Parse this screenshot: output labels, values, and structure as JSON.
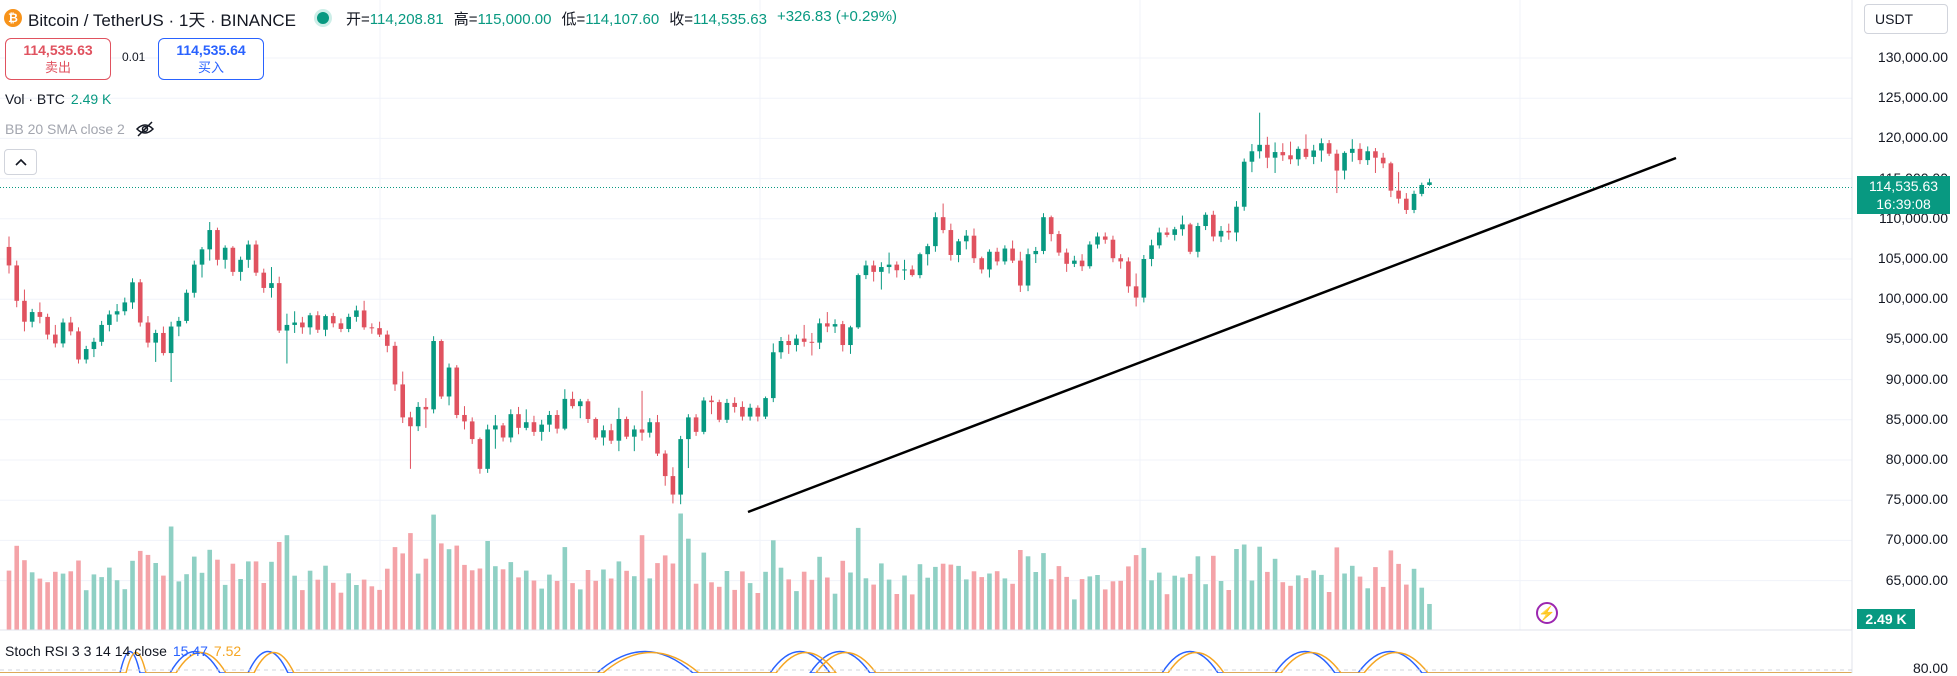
{
  "header": {
    "coin_symbol": "₿",
    "title": "Bitcoin / TetherUS · 1天 · BINANCE",
    "ohlc": [
      {
        "key": "开=",
        "value": "114,208.81"
      },
      {
        "key": "高=",
        "value": "115,000.00"
      },
      {
        "key": "低=",
        "value": "114,107.60"
      },
      {
        "key": "收=",
        "value": "114,535.63"
      },
      {
        "key": "",
        "value": "+326.83 (+0.29%)"
      }
    ]
  },
  "trade": {
    "sell_price": "114,535.63",
    "sell_label": "卖出",
    "spread": "0.01",
    "buy_price": "114,535.64",
    "buy_label": "买入"
  },
  "volume_legend": {
    "label": "Vol · BTC",
    "value": "2.49 K"
  },
  "bb_legend": {
    "label": "BB 20 SMA close 2"
  },
  "currency_selector": {
    "value": "USDT"
  },
  "price_axis": [
    "130,000.00",
    "125,000.00",
    "120,000.00",
    "115,000.00",
    "110,000.00",
    "105,000.00",
    "100,000.00",
    "95,000.00",
    "90,000.00",
    "85,000.00",
    "80,000.00",
    "75,000.00",
    "70,000.00",
    "65,000.00"
  ],
  "last_price_tag": {
    "price": "114,535.63",
    "countdown": "16:39:08"
  },
  "volume_tag": "2.49 K",
  "stoch": {
    "label": "Stoch RSI 3 3 14 14 close",
    "k": "15.47",
    "d": "7.52",
    "axis_label": "80.00"
  },
  "colors": {
    "up": "#089981",
    "down": "#e0525f",
    "vol_up": "#8fd0c4",
    "vol_down": "#f4a3a8",
    "stoch_k": "#2962ff",
    "stoch_d": "#f5a623"
  },
  "icons": {
    "hidden": "eye-off-icon",
    "collapse": "chevron-up-icon",
    "flash": "lightning-icon"
  },
  "chart_data": {
    "type": "candlestick",
    "symbol": "Bitcoin / TetherUS",
    "interval": "1天",
    "exchange": "BINANCE",
    "y_range": [
      63000,
      133000
    ],
    "last_price": 114535.63,
    "candles": [
      [
        106500,
        107800,
        103200,
        104200
      ],
      [
        104200,
        104800,
        99000,
        99800
      ],
      [
        99800,
        101200,
        96000,
        97200
      ],
      [
        97200,
        98800,
        96500,
        98400
      ],
      [
        98400,
        99600,
        97000,
        97800
      ],
      [
        97800,
        98200,
        95000,
        95600
      ],
      [
        95600,
        96800,
        94000,
        94500
      ],
      [
        94500,
        97600,
        94000,
        97100
      ],
      [
        97100,
        97800,
        95500,
        96000
      ],
      [
        96000,
        96500,
        92000,
        92500
      ],
      [
        92500,
        94200,
        92000,
        93800
      ],
      [
        93800,
        95200,
        92800,
        94700
      ],
      [
        94700,
        97300,
        94200,
        96800
      ],
      [
        96800,
        98600,
        96000,
        98100
      ],
      [
        98100,
        99400,
        97200,
        98500
      ],
      [
        98500,
        100200,
        98000,
        99600
      ],
      [
        99600,
        102600,
        98800,
        102100
      ],
      [
        102100,
        102500,
        96600,
        97100
      ],
      [
        97100,
        97900,
        94000,
        94600
      ],
      [
        94600,
        96200,
        92200,
        95800
      ],
      [
        95800,
        96600,
        93000,
        93300
      ],
      [
        93300,
        97200,
        89700,
        96600
      ],
      [
        96600,
        97800,
        95400,
        97300
      ],
      [
        97300,
        101200,
        97000,
        100800
      ],
      [
        100800,
        104800,
        100200,
        104300
      ],
      [
        104300,
        106500,
        102700,
        106200
      ],
      [
        106200,
        109600,
        104800,
        108600
      ],
      [
        108600,
        108900,
        104200,
        104900
      ],
      [
        104900,
        106700,
        103800,
        106400
      ],
      [
        106400,
        106600,
        102900,
        103400
      ],
      [
        103400,
        105300,
        102300,
        104900
      ],
      [
        104900,
        107300,
        103900,
        106800
      ],
      [
        106800,
        107300,
        102900,
        103300
      ],
      [
        103300,
        103800,
        100800,
        101400
      ],
      [
        101400,
        104000,
        100200,
        102000
      ],
      [
        102000,
        102800,
        95800,
        96100
      ],
      [
        96100,
        98200,
        92000,
        96800
      ],
      [
        96800,
        98500,
        95800,
        97100
      ],
      [
        97100,
        97800,
        95700,
        96500
      ],
      [
        96500,
        98300,
        95600,
        98000
      ],
      [
        98000,
        98500,
        95800,
        96200
      ],
      [
        96200,
        98100,
        95400,
        97900
      ],
      [
        97900,
        98300,
        96500,
        97000
      ],
      [
        97000,
        97600,
        95900,
        96300
      ],
      [
        96300,
        98200,
        95900,
        97800
      ],
      [
        97800,
        99200,
        97200,
        98600
      ],
      [
        98600,
        99800,
        96200,
        96500
      ],
      [
        96500,
        97000,
        95700,
        96400
      ],
      [
        96400,
        97200,
        95300,
        95600
      ],
      [
        95600,
        96100,
        93400,
        94200
      ],
      [
        94200,
        94700,
        88600,
        89400
      ],
      [
        89400,
        91000,
        84600,
        85300
      ],
      [
        85300,
        86000,
        78900,
        84200
      ],
      [
        84200,
        87200,
        83600,
        86600
      ],
      [
        86600,
        87700,
        84000,
        86300
      ],
      [
        86300,
        95400,
        85800,
        94800
      ],
      [
        94800,
        95000,
        87600,
        87900
      ],
      [
        87900,
        92000,
        86800,
        91500
      ],
      [
        91500,
        91800,
        85200,
        85600
      ],
      [
        85600,
        86700,
        83800,
        84800
      ],
      [
        84800,
        85300,
        82000,
        82600
      ],
      [
        82600,
        82800,
        78300,
        78900
      ],
      [
        78900,
        84400,
        78400,
        83800
      ],
      [
        83800,
        85600,
        81400,
        84300
      ],
      [
        84300,
        84600,
        82300,
        82800
      ],
      [
        82800,
        86300,
        82200,
        85700
      ],
      [
        85700,
        86600,
        83200,
        84000
      ],
      [
        84000,
        86300,
        83700,
        84700
      ],
      [
        84700,
        85500,
        83000,
        83500
      ],
      [
        83500,
        85000,
        82400,
        84400
      ],
      [
        84400,
        86100,
        83500,
        85600
      ],
      [
        85600,
        86200,
        83300,
        83900
      ],
      [
        83900,
        88800,
        83700,
        87600
      ],
      [
        87600,
        88500,
        86400,
        86700
      ],
      [
        86700,
        87600,
        85200,
        87300
      ],
      [
        87300,
        87600,
        84600,
        85100
      ],
      [
        85100,
        85300,
        82500,
        82800
      ],
      [
        82800,
        84300,
        81800,
        83700
      ],
      [
        83700,
        84500,
        82000,
        82400
      ],
      [
        82400,
        86500,
        81100,
        85100
      ],
      [
        85100,
        85400,
        82600,
        82900
      ],
      [
        82900,
        84300,
        81100,
        83800
      ],
      [
        83800,
        88600,
        82400,
        83400
      ],
      [
        83400,
        85200,
        82800,
        84700
      ],
      [
        84700,
        85600,
        80500,
        80800
      ],
      [
        80800,
        81200,
        76800,
        78000
      ],
      [
        78000,
        79100,
        74600,
        75700
      ],
      [
        75700,
        83000,
        74500,
        82600
      ],
      [
        82600,
        85700,
        79000,
        85300
      ],
      [
        85300,
        85700,
        83000,
        83500
      ],
      [
        83500,
        87800,
        83200,
        87400
      ],
      [
        87400,
        88000,
        85700,
        87200
      ],
      [
        87200,
        87500,
        84700,
        85000
      ],
      [
        85000,
        87600,
        84600,
        87100
      ],
      [
        87100,
        87800,
        85900,
        86600
      ],
      [
        86600,
        87300,
        84900,
        85400
      ],
      [
        85400,
        87000,
        84900,
        86500
      ],
      [
        86500,
        86800,
        84800,
        85400
      ],
      [
        85400,
        87900,
        85100,
        87700
      ],
      [
        87700,
        94500,
        87200,
        93400
      ],
      [
        93400,
        95300,
        92600,
        94800
      ],
      [
        94800,
        95600,
        93200,
        94300
      ],
      [
        94300,
        95600,
        93500,
        95100
      ],
      [
        95100,
        96800,
        94100,
        94700
      ],
      [
        94700,
        95800,
        93000,
        94600
      ],
      [
        94600,
        97600,
        93800,
        97000
      ],
      [
        97000,
        98400,
        95900,
        96600
      ],
      [
        96600,
        97500,
        95800,
        96900
      ],
      [
        96900,
        97300,
        93500,
        94300
      ],
      [
        94300,
        96700,
        93200,
        96500
      ],
      [
        96500,
        103200,
        96300,
        103000
      ],
      [
        103000,
        104800,
        102500,
        104200
      ],
      [
        104200,
        104800,
        102200,
        103400
      ],
      [
        103400,
        104600,
        101200,
        104000
      ],
      [
        104000,
        105800,
        103200,
        104300
      ],
      [
        104300,
        104700,
        102700,
        103600
      ],
      [
        103600,
        104900,
        102400,
        103700
      ],
      [
        103700,
        104200,
        102800,
        103000
      ],
      [
        103000,
        105800,
        102600,
        105600
      ],
      [
        105600,
        106900,
        104200,
        106600
      ],
      [
        106600,
        110800,
        105900,
        110200
      ],
      [
        110200,
        111900,
        108200,
        108600
      ],
      [
        108600,
        109400,
        104800,
        105500
      ],
      [
        105500,
        107500,
        104600,
        107200
      ],
      [
        107200,
        108600,
        106200,
        107900
      ],
      [
        107900,
        108800,
        104500,
        105100
      ],
      [
        105100,
        105300,
        103200,
        103700
      ],
      [
        103700,
        106200,
        102700,
        105900
      ],
      [
        105900,
        106400,
        104200,
        104700
      ],
      [
        104700,
        106700,
        104300,
        106300
      ],
      [
        106300,
        107300,
        104500,
        104800
      ],
      [
        104800,
        105900,
        100900,
        101700
      ],
      [
        101700,
        106300,
        101000,
        105600
      ],
      [
        105600,
        106500,
        104500,
        106000
      ],
      [
        106000,
        110700,
        105600,
        110200
      ],
      [
        110200,
        110400,
        107200,
        108100
      ],
      [
        108100,
        108500,
        105400,
        105800
      ],
      [
        105800,
        106300,
        103400,
        104400
      ],
      [
        104400,
        105400,
        104000,
        104800
      ],
      [
        104800,
        105600,
        103500,
        104100
      ],
      [
        104100,
        107200,
        103800,
        106800
      ],
      [
        106800,
        108300,
        106300,
        107800
      ],
      [
        107800,
        108300,
        106900,
        107400
      ],
      [
        107400,
        107900,
        104600,
        105100
      ],
      [
        105100,
        105600,
        103800,
        104700
      ],
      [
        104700,
        105200,
        100800,
        101600
      ],
      [
        101600,
        103200,
        99100,
        100200
      ],
      [
        100200,
        105500,
        99600,
        105000
      ],
      [
        105000,
        107400,
        104100,
        106700
      ],
      [
        106700,
        108900,
        106300,
        108300
      ],
      [
        108300,
        108900,
        107700,
        108000
      ],
      [
        108000,
        109000,
        107300,
        108700
      ],
      [
        108700,
        110400,
        107900,
        109300
      ],
      [
        109300,
        109500,
        105600,
        105900
      ],
      [
        105900,
        109500,
        105200,
        109100
      ],
      [
        109100,
        110800,
        108600,
        110500
      ],
      [
        110500,
        111000,
        107200,
        107800
      ],
      [
        107800,
        109100,
        107100,
        108500
      ],
      [
        108500,
        109400,
        107400,
        108300
      ],
      [
        108300,
        112200,
        107200,
        111500
      ],
      [
        111500,
        117500,
        111000,
        117100
      ],
      [
        117100,
        119300,
        115800,
        118400
      ],
      [
        118400,
        123200,
        117500,
        119200
      ],
      [
        119200,
        120200,
        116300,
        117600
      ],
      [
        117600,
        119500,
        115700,
        118300
      ],
      [
        118300,
        119400,
        117200,
        117900
      ],
      [
        117900,
        119600,
        116800,
        117400
      ],
      [
        117400,
        119000,
        116600,
        118700
      ],
      [
        118700,
        120500,
        117400,
        117700
      ],
      [
        117700,
        119200,
        116800,
        118500
      ],
      [
        118500,
        120000,
        117100,
        119400
      ],
      [
        119400,
        119800,
        117800,
        118100
      ],
      [
        118100,
        118600,
        113200,
        116000
      ],
      [
        116000,
        118400,
        114900,
        118200
      ],
      [
        118200,
        119900,
        117100,
        118700
      ],
      [
        118700,
        119400,
        116800,
        117300
      ],
      [
        117300,
        119000,
        116700,
        118400
      ],
      [
        118400,
        118800,
        115700,
        117600
      ],
      [
        117600,
        118200,
        116300,
        116900
      ],
      [
        116900,
        117100,
        112700,
        113500
      ],
      [
        113500,
        115800,
        111900,
        112500
      ],
      [
        112500,
        113200,
        110600,
        111100
      ],
      [
        111100,
        113500,
        110700,
        113100
      ],
      [
        113100,
        114500,
        112800,
        114208.81
      ],
      [
        114208.81,
        115000,
        114107.6,
        114535.63
      ]
    ]
  }
}
